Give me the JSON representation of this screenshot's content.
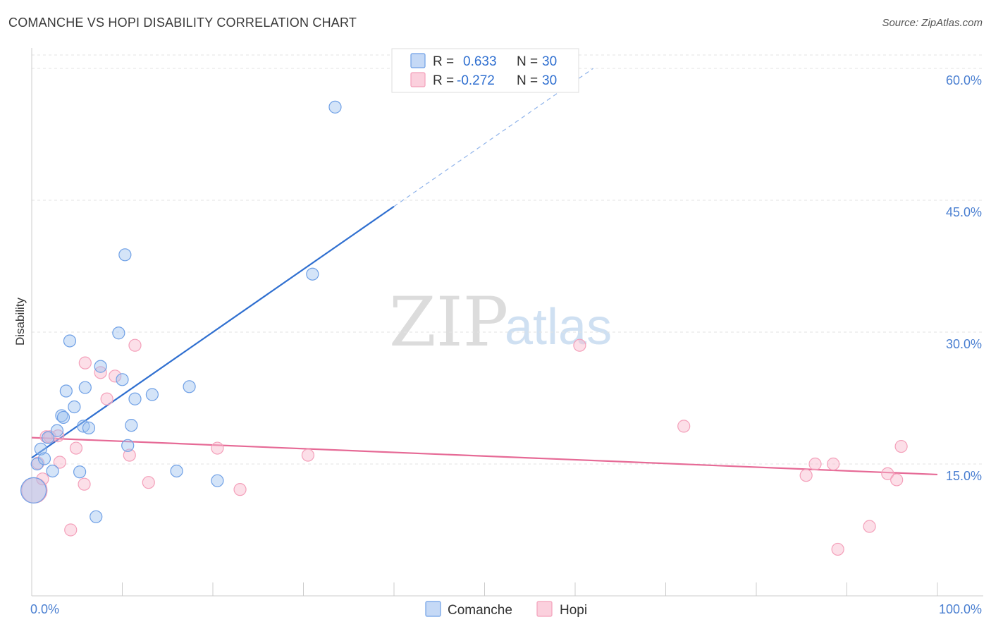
{
  "title": "COMANCHE VS HOPI DISABILITY CORRELATION CHART",
  "source": "Source: ZipAtlas.com",
  "watermark": {
    "zip": "ZIP",
    "atlas": "atlas"
  },
  "legend_top": [
    {
      "r_label": "R =",
      "r_value": "0.633",
      "n_label": "N =",
      "n_value": "30"
    },
    {
      "r_label": "R =",
      "r_value": "-0.272",
      "n_label": "N =",
      "n_value": "30"
    }
  ],
  "legend_bottom": [
    "Comanche",
    "Hopi"
  ],
  "chart_data": {
    "type": "scatter",
    "title": "COMANCHE VS HOPI DISABILITY CORRELATION CHART",
    "xlabel": "",
    "ylabel": "Disability",
    "xlim": [
      0,
      100
    ],
    "ylim": [
      0,
      60
    ],
    "x_tick_labels": [
      "0.0%",
      "100.0%"
    ],
    "y_tick_labels": [
      "15.0%",
      "30.0%",
      "45.0%",
      "60.0%"
    ],
    "y_ticks": [
      15,
      30,
      45,
      60
    ],
    "colors": {
      "comanche": "#6fa0e6",
      "comanche_line": "#2f6fd0",
      "hopi": "#f4a0ba",
      "hopi_line": "#e66a96"
    },
    "series": [
      {
        "name": "Comanche",
        "points": [
          [
            0.2,
            12.0
          ],
          [
            0.6,
            15.0
          ],
          [
            1.0,
            16.7
          ],
          [
            1.4,
            15.6
          ],
          [
            1.8,
            18.0
          ],
          [
            2.3,
            14.2
          ],
          [
            2.8,
            18.8
          ],
          [
            3.3,
            20.5
          ],
          [
            3.5,
            20.3
          ],
          [
            3.8,
            23.3
          ],
          [
            4.2,
            29.0
          ],
          [
            4.7,
            21.5
          ],
          [
            5.3,
            14.1
          ],
          [
            5.7,
            19.3
          ],
          [
            5.9,
            23.7
          ],
          [
            6.3,
            19.1
          ],
          [
            7.1,
            9.0
          ],
          [
            7.6,
            26.1
          ],
          [
            9.6,
            29.9
          ],
          [
            10.0,
            24.6
          ],
          [
            10.3,
            38.8
          ],
          [
            10.6,
            17.1
          ],
          [
            11.0,
            19.4
          ],
          [
            11.4,
            22.4
          ],
          [
            13.3,
            22.9
          ],
          [
            16.0,
            14.2
          ],
          [
            17.4,
            23.8
          ],
          [
            20.5,
            13.1
          ],
          [
            31.0,
            36.6
          ],
          [
            33.5,
            55.6
          ]
        ],
        "trend": {
          "x0": 0,
          "y0": 15.7,
          "x1": 40.0,
          "y1": 44.3,
          "dashed_to_x": 62.0,
          "dashed_to_y": 60.0
        }
      },
      {
        "name": "Hopi",
        "points": [
          [
            0.3,
            12.0
          ],
          [
            0.7,
            15.1
          ],
          [
            1.2,
            13.3
          ],
          [
            1.6,
            18.1
          ],
          [
            2.0,
            18.1
          ],
          [
            2.9,
            18.2
          ],
          [
            3.1,
            15.2
          ],
          [
            4.3,
            7.5
          ],
          [
            4.9,
            16.8
          ],
          [
            5.8,
            12.7
          ],
          [
            5.9,
            26.5
          ],
          [
            7.6,
            25.4
          ],
          [
            8.3,
            22.4
          ],
          [
            9.2,
            25.0
          ],
          [
            10.8,
            16.0
          ],
          [
            11.4,
            28.5
          ],
          [
            12.9,
            12.9
          ],
          [
            20.5,
            16.8
          ],
          [
            23.0,
            12.1
          ],
          [
            30.5,
            16.0
          ],
          [
            60.5,
            28.5
          ],
          [
            72.0,
            19.3
          ],
          [
            85.5,
            13.7
          ],
          [
            86.5,
            15.0
          ],
          [
            88.5,
            15.0
          ],
          [
            89.0,
            5.3
          ],
          [
            92.5,
            7.9
          ],
          [
            94.5,
            13.9
          ],
          [
            95.5,
            13.2
          ],
          [
            96.0,
            17.0
          ]
        ],
        "trend": {
          "x0": 0,
          "y0": 18.0,
          "x1": 100.0,
          "y1": 13.8
        }
      }
    ],
    "grid": true,
    "legend_position": "top-center"
  }
}
